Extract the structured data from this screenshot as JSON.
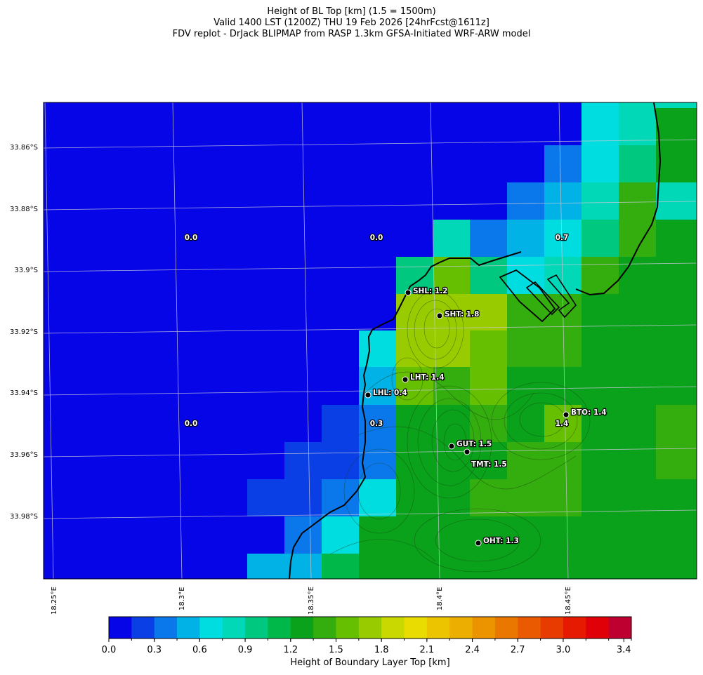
{
  "title": {
    "line1": "Height of BL Top [km] (1.5 = 1500m)",
    "line2": "Valid 1400 LST (1200Z) THU 19 Feb 2026 [24hrFcst@1611z]",
    "line3": "FDV replot - DrJack BLIPMAP from RASP 1.3km GFSA-Initiated WRF-ARW model"
  },
  "lat_ticks": [
    "33.86°S",
    "33.88°S",
    "33.9°S",
    "33.92°S",
    "33.94°S",
    "33.96°S",
    "33.98°S"
  ],
  "lon_ticks": [
    "18.25°E",
    "18.3°E",
    "18.35°E",
    "18.4°E",
    "18.45°E"
  ],
  "stations": [
    {
      "label": "SHL: 1.2"
    },
    {
      "label": "SHT: 1.8"
    },
    {
      "label": "LHT: 1.4"
    },
    {
      "label": "LHL: 0.4"
    },
    {
      "label": "BTO: 1.4"
    },
    {
      "label": "GUT: 1.5"
    },
    {
      "label": "TMT: 1.5"
    },
    {
      "label": "OHT: 1.3"
    }
  ],
  "grid_values": [
    "0.0",
    "0.0",
    "0.7",
    "0.0",
    "0.3",
    "1.4"
  ],
  "colorbar": {
    "label": "Height of Boundary Layer Top [km]",
    "ticks": [
      "0.0",
      "0.3",
      "0.6",
      "0.9",
      "1.2",
      "1.5",
      "1.8",
      "2.1",
      "2.4",
      "2.7",
      "3.0",
      "3.4"
    ],
    "colors": [
      "#0505e8",
      "#0a3fe6",
      "#0a78ea",
      "#00b2e6",
      "#00dde0",
      "#00d8b8",
      "#00c87e",
      "#00b84a",
      "#0aa21a",
      "#34ad0e",
      "#66bf00",
      "#99cc00",
      "#c8d800",
      "#e8dc00",
      "#ecc400",
      "#ecae00",
      "#eb9400",
      "#ea7800",
      "#ea5a00",
      "#e83b00",
      "#e51a00",
      "#e00008",
      "#be0030"
    ]
  }
}
